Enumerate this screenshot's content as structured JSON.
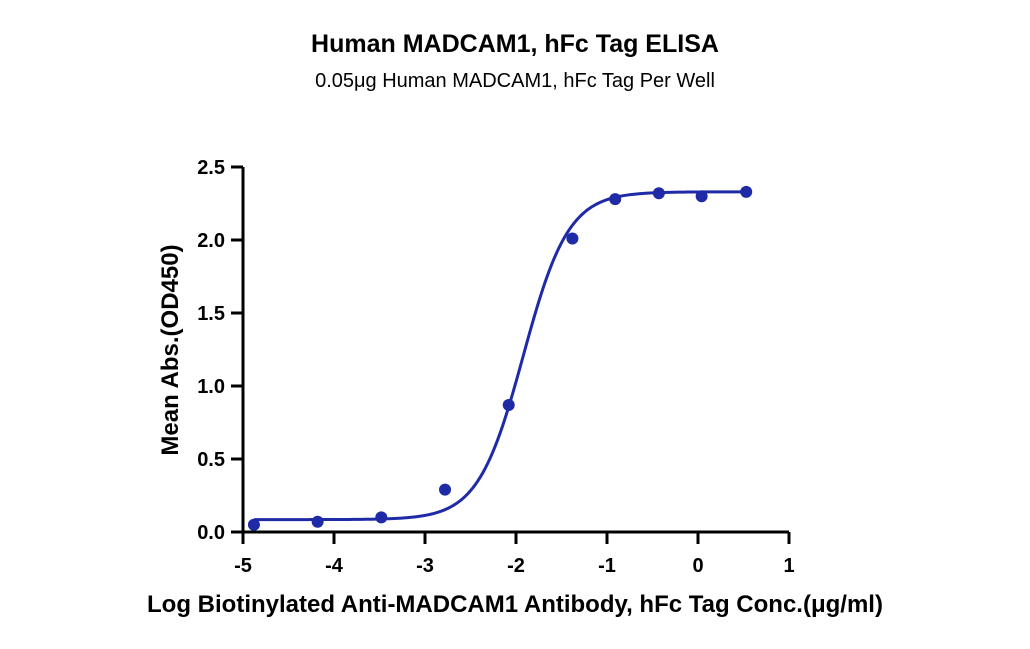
{
  "chart_data": {
    "type": "scatter",
    "title": "Human MADCAM1, hFc Tag ELISA",
    "subtitle": "0.05μg Human MADCAM1, hFc Tag Per Well",
    "xlabel": "Log Biotinylated Anti-MADCAM1 Antibody, hFc Tag Conc.(μg/ml)",
    "ylabel": "Mean Abs.(OD450)",
    "xlim": [
      -5,
      1
    ],
    "ylim": [
      0,
      2.5
    ],
    "xticks": [
      "-5",
      "-4",
      "-3",
      "-2",
      "-1",
      "0",
      "1"
    ],
    "yticks": [
      "0.0",
      "0.5",
      "1.0",
      "1.5",
      "2.0",
      "2.5"
    ],
    "grid": false,
    "fit": "four-parameter logistic curve",
    "colors": {
      "series": "#1f2aa6",
      "axis": "#000000"
    },
    "series": [
      {
        "x": [
          -4.88,
          -4.18,
          -3.48,
          -2.78,
          -2.08,
          -1.38,
          -0.91,
          -0.43,
          0.04,
          0.53
        ],
        "y": [
          0.05,
          0.07,
          0.1,
          0.29,
          0.87,
          2.01,
          2.28,
          2.32,
          2.3,
          2.33
        ]
      }
    ]
  }
}
